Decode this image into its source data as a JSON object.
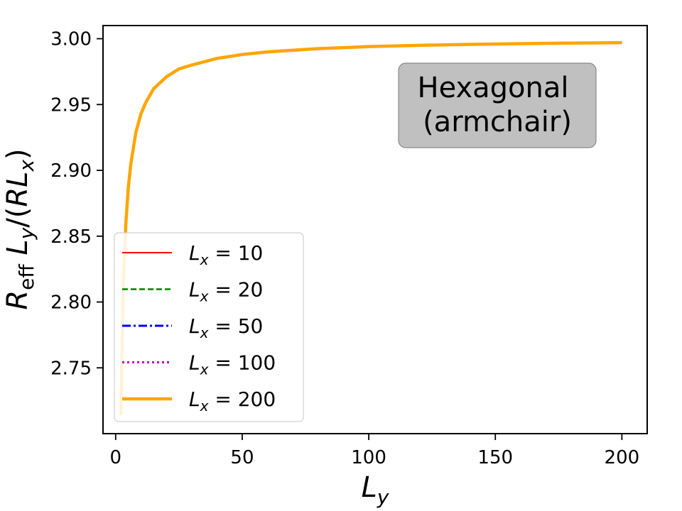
{
  "chart_data": {
    "type": "line",
    "xlabel": "L_y",
    "ylabel": "R_eff L_y/(R L_x)",
    "xlim": [
      -5,
      210
    ],
    "ylim": [
      2.7,
      3.01
    ],
    "xticks": [
      0,
      50,
      100,
      150,
      200
    ],
    "yticks": [
      2.75,
      2.8,
      2.85,
      2.9,
      2.95,
      3.0
    ],
    "xtick_labels": [
      "0",
      "50",
      "100",
      "150",
      "200"
    ],
    "ytick_labels": [
      "2.75",
      "2.80",
      "2.85",
      "2.90",
      "2.95",
      "3.00"
    ],
    "annotation": {
      "line1": "Hexagonal",
      "line2": "(armchair)",
      "placement": "upper-right"
    },
    "legend": {
      "placement": "lower-left"
    },
    "x": [
      2,
      3,
      4,
      5,
      6,
      8,
      10,
      12,
      15,
      20,
      25,
      30,
      40,
      50,
      60,
      80,
      100,
      120,
      150,
      175,
      200
    ],
    "series": [
      {
        "name": "L_x = 10",
        "label_var": "L",
        "label_sub": "x",
        "label_val": "= 10",
        "color": "#ff0000",
        "style": "solid",
        "values": [
          2.714,
          2.812,
          2.859,
          2.887,
          2.905,
          2.929,
          2.943,
          2.952,
          2.962,
          2.971,
          2.977,
          2.98,
          2.985,
          2.988,
          2.99,
          2.9925,
          2.994,
          2.995,
          2.996,
          2.9966,
          2.997
        ]
      },
      {
        "name": "L_x = 20",
        "label_var": "L",
        "label_sub": "x",
        "label_val": "= 20",
        "color": "#008000",
        "style": "dashed",
        "values": [
          2.714,
          2.812,
          2.859,
          2.887,
          2.905,
          2.929,
          2.943,
          2.952,
          2.962,
          2.971,
          2.977,
          2.98,
          2.985,
          2.988,
          2.99,
          2.9925,
          2.994,
          2.995,
          2.996,
          2.9966,
          2.997
        ]
      },
      {
        "name": "L_x = 50",
        "label_var": "L",
        "label_sub": "x",
        "label_val": "= 50",
        "color": "#0000ff",
        "style": "dashdot",
        "values": [
          2.714,
          2.812,
          2.859,
          2.887,
          2.905,
          2.929,
          2.943,
          2.952,
          2.962,
          2.971,
          2.977,
          2.98,
          2.985,
          2.988,
          2.99,
          2.9925,
          2.994,
          2.995,
          2.996,
          2.9966,
          2.997
        ]
      },
      {
        "name": "L_x = 100",
        "label_var": "L",
        "label_sub": "x",
        "label_val": "= 100",
        "color": "#bf00bf",
        "style": "dotted",
        "values": [
          2.714,
          2.812,
          2.859,
          2.887,
          2.905,
          2.929,
          2.943,
          2.952,
          2.962,
          2.971,
          2.977,
          2.98,
          2.985,
          2.988,
          2.99,
          2.9925,
          2.994,
          2.995,
          2.996,
          2.9966,
          2.997
        ]
      },
      {
        "name": "L_x = 200",
        "label_var": "L",
        "label_sub": "x",
        "label_val": "= 200",
        "color": "#ffa500",
        "style": "solid-thick",
        "values": [
          2.714,
          2.812,
          2.859,
          2.887,
          2.905,
          2.929,
          2.943,
          2.952,
          2.962,
          2.971,
          2.977,
          2.98,
          2.985,
          2.988,
          2.99,
          2.9925,
          2.994,
          2.995,
          2.996,
          2.9966,
          2.997
        ]
      }
    ]
  }
}
